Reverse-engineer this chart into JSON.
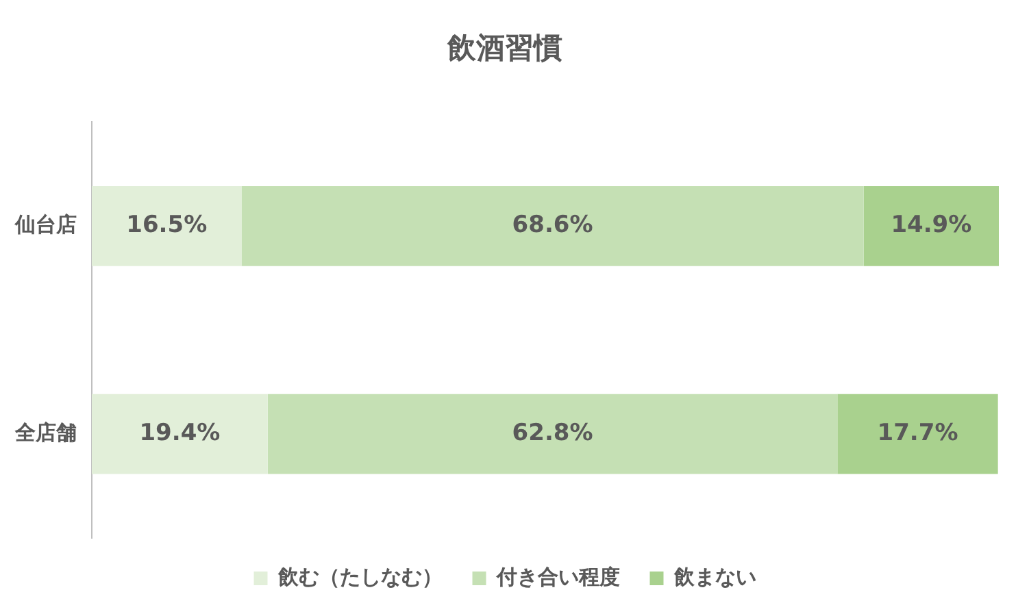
{
  "chart_data": {
    "type": "bar",
    "orientation": "horizontal",
    "stacked": true,
    "title": "飲酒習慣",
    "categories": [
      "仙台店",
      "全店舗"
    ],
    "xlim": [
      0,
      100
    ],
    "tick_labels": "y",
    "legend": "bottom",
    "series": [
      {
        "name": "飲む（たしなむ）",
        "color": "#e2efd9",
        "values": [
          16.5,
          19.4
        ],
        "value_labels": [
          "16.5%",
          "19.4%"
        ]
      },
      {
        "name": "付き合い程度",
        "color": "#c5e0b4",
        "values": [
          68.6,
          62.8
        ],
        "value_labels": [
          "68.6%",
          "62.8%"
        ]
      },
      {
        "name": "飲まない",
        "color": "#a9d18e",
        "values": [
          14.9,
          17.7
        ],
        "value_labels": [
          "14.9%",
          "17.7%"
        ]
      }
    ]
  }
}
